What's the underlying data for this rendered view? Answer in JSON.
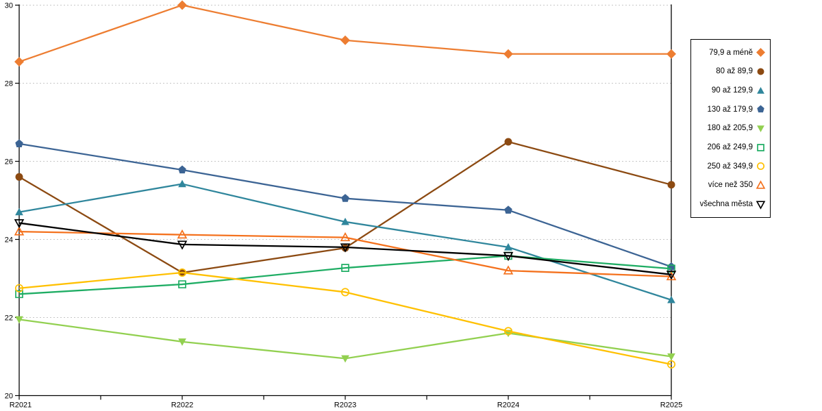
{
  "chart_data": {
    "type": "line",
    "title": "",
    "xlabel": "",
    "ylabel": "",
    "x_categories": [
      "R2021",
      "R2022",
      "R2023",
      "R2024",
      "R2025"
    ],
    "y_axis": {
      "min": 20,
      "max": 30,
      "tick_step": 2,
      "tick_labels": [
        "20",
        "22",
        "24",
        "26",
        "28",
        "30"
      ]
    },
    "grid": "horizontal-dashed",
    "gridline_color": "#c6c6c6",
    "axis_color": "#000000",
    "legend_position": "right",
    "series": [
      {
        "name": "79,9 a méně",
        "color": "#ED7D31",
        "marker": "diamond",
        "marker_style": "solid",
        "values": [
          28.55,
          30.0,
          29.1,
          28.75,
          28.75
        ]
      },
      {
        "name": "80 až 89,9",
        "color": "#8C4A12",
        "marker": "circle",
        "marker_style": "solid",
        "values": [
          25.6,
          23.15,
          23.78,
          26.5,
          25.4
        ]
      },
      {
        "name": "90 až 129,9",
        "color": "#2F869C",
        "marker": "triangle-up",
        "marker_style": "solid",
        "values": [
          24.7,
          25.42,
          24.45,
          23.8,
          22.45
        ]
      },
      {
        "name": "130 až 179,9",
        "color": "#3C6494",
        "marker": "pentagon",
        "marker_style": "solid",
        "values": [
          26.45,
          25.78,
          25.05,
          24.75,
          23.3
        ]
      },
      {
        "name": "180 až 205,9",
        "color": "#92D050",
        "marker": "triangle-down",
        "marker_style": "solid",
        "values": [
          21.95,
          21.38,
          20.95,
          21.6,
          21.0
        ]
      },
      {
        "name": "206 až 249,9",
        "color": "#1FAD64",
        "marker": "square",
        "marker_style": "open",
        "values": [
          22.6,
          22.85,
          23.27,
          23.58,
          23.25
        ]
      },
      {
        "name": "250 až 349,9",
        "color": "#FFC000",
        "marker": "circle",
        "marker_style": "open",
        "values": [
          22.75,
          23.15,
          22.65,
          21.65,
          20.8
        ]
      },
      {
        "name": "více než 350",
        "color": "#F4711D",
        "marker": "triangle-up",
        "marker_style": "open",
        "values": [
          24.2,
          24.12,
          24.05,
          23.2,
          23.05
        ]
      },
      {
        "name": "všechna města",
        "color": "#000000",
        "marker": "triangle-down",
        "marker_style": "open",
        "values": [
          24.42,
          23.87,
          23.8,
          23.58,
          23.1
        ]
      }
    ]
  }
}
